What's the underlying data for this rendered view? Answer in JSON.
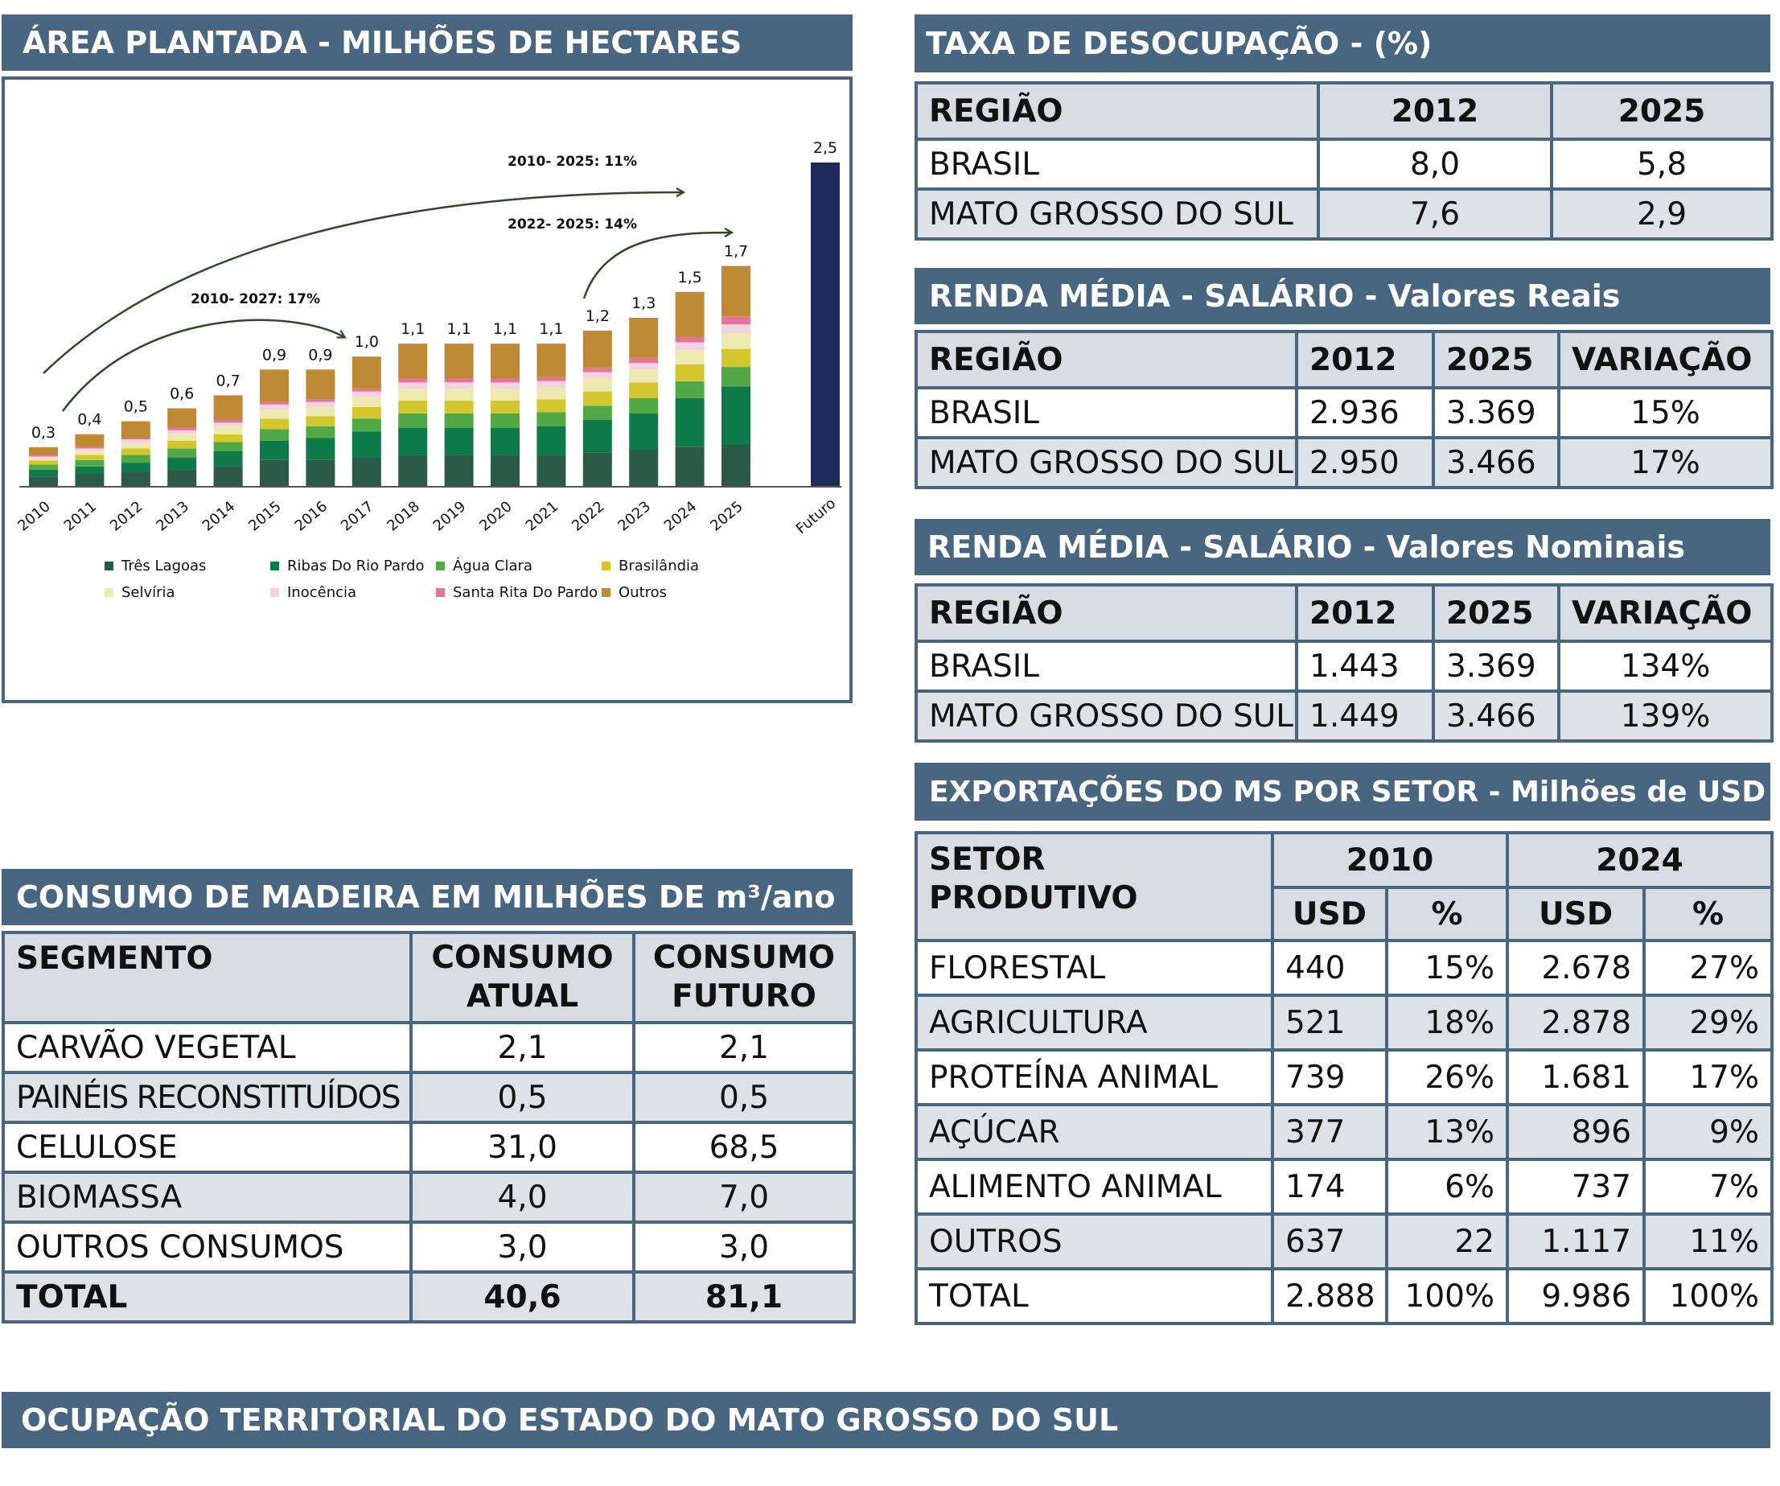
{
  "area_plantada": {
    "title": "ÁREA PLANTADA - MILHÕES DE HECTARES",
    "arrow_labels": [
      "2010- 2025: 11%",
      "2022- 2025: 14%",
      "2010- 2027: 17%"
    ]
  },
  "chart_data": {
    "type": "bar",
    "stacked": true,
    "categories": [
      "2010",
      "2011",
      "2012",
      "2013",
      "2014",
      "2015",
      "2016",
      "2017",
      "2018",
      "2019",
      "2020",
      "2021",
      "2022",
      "2023",
      "2024",
      "2025",
      "Futuro"
    ],
    "totals": [
      0.3,
      0.4,
      0.5,
      0.6,
      0.7,
      0.9,
      0.9,
      1.0,
      1.1,
      1.1,
      1.1,
      1.1,
      1.2,
      1.3,
      1.5,
      1.7,
      2.5
    ],
    "total_labels": [
      "0,3",
      "0,4",
      "0,5",
      "0,6",
      "0,7",
      "0,9",
      "0,9",
      "1,0",
      "1,1",
      "1,1",
      "1,1",
      "1,1",
      "1,2",
      "1,3",
      "1,5",
      "1,7",
      "2,5"
    ],
    "series": [
      {
        "name": "Três Lagoas",
        "color": "#2b5a48",
        "values": [
          0.07,
          0.09,
          0.11,
          0.13,
          0.15,
          0.2,
          0.2,
          0.22,
          0.24,
          0.24,
          0.24,
          0.24,
          0.26,
          0.28,
          0.3,
          0.32,
          null
        ]
      },
      {
        "name": "Ribas Do Rio Pardo",
        "color": "#0e7a4a",
        "values": [
          0.05,
          0.06,
          0.07,
          0.09,
          0.12,
          0.15,
          0.17,
          0.2,
          0.21,
          0.21,
          0.21,
          0.22,
          0.25,
          0.28,
          0.38,
          0.45,
          null
        ]
      },
      {
        "name": "Água Clara",
        "color": "#52a844",
        "values": [
          0.04,
          0.05,
          0.06,
          0.07,
          0.07,
          0.09,
          0.09,
          0.1,
          0.11,
          0.11,
          0.11,
          0.11,
          0.11,
          0.12,
          0.13,
          0.15,
          null
        ]
      },
      {
        "name": "Brasilândia",
        "color": "#d4c62f",
        "values": [
          0.03,
          0.04,
          0.05,
          0.06,
          0.06,
          0.08,
          0.08,
          0.09,
          0.1,
          0.1,
          0.1,
          0.1,
          0.11,
          0.12,
          0.13,
          0.14,
          null
        ]
      },
      {
        "name": "Selvíria",
        "color": "#ede9b0",
        "values": [
          0.02,
          0.03,
          0.04,
          0.05,
          0.06,
          0.07,
          0.07,
          0.08,
          0.09,
          0.09,
          0.09,
          0.09,
          0.1,
          0.1,
          0.11,
          0.12,
          null
        ]
      },
      {
        "name": "Inocência",
        "color": "#f4d3e1",
        "values": [
          0.01,
          0.02,
          0.03,
          0.03,
          0.03,
          0.04,
          0.04,
          0.04,
          0.05,
          0.05,
          0.05,
          0.05,
          0.05,
          0.05,
          0.06,
          0.07,
          null
        ]
      },
      {
        "name": "Santa Rita Do Pardo",
        "color": "#e8739a",
        "values": [
          0.01,
          0.01,
          0.01,
          0.02,
          0.02,
          0.02,
          0.02,
          0.02,
          0.03,
          0.03,
          0.03,
          0.03,
          0.03,
          0.04,
          0.04,
          0.06,
          null
        ]
      },
      {
        "name": "Outros",
        "color": "#bf8a35",
        "values": [
          0.06,
          0.1,
          0.13,
          0.15,
          0.19,
          0.25,
          0.23,
          0.25,
          0.27,
          0.27,
          0.27,
          0.26,
          0.29,
          0.31,
          0.35,
          0.39,
          null
        ]
      },
      {
        "color": "#1f2a5a",
        "values": [
          null,
          null,
          null,
          null,
          null,
          null,
          null,
          null,
          null,
          null,
          null,
          null,
          null,
          null,
          null,
          null,
          2.5
        ]
      }
    ],
    "ylim": [
      0,
      2.5
    ],
    "grid": false,
    "legend_position": "bottom"
  },
  "desocupacao": {
    "title": "TAXA DE DESOCUPAÇÃO - (%)",
    "headers": [
      "REGIÃO",
      "2012",
      "2025"
    ],
    "rows": [
      [
        "BRASIL",
        "8,0",
        "5,8"
      ],
      [
        "MATO GROSSO DO SUL",
        "7,6",
        "2,9"
      ]
    ]
  },
  "renda_reais": {
    "title": "RENDA MÉDIA - SALÁRIO - Valores Reais",
    "headers": [
      "REGIÃO",
      "2012",
      "2025",
      "VARIAÇÃO"
    ],
    "rows": [
      [
        "BRASIL",
        "2.936",
        "3.369",
        "15%"
      ],
      [
        "MATO GROSSO DO SUL",
        "2.950",
        "3.466",
        "17%"
      ]
    ]
  },
  "renda_nominais": {
    "title": "RENDA MÉDIA - SALÁRIO - Valores Nominais",
    "headers": [
      "REGIÃO",
      "2012",
      "2025",
      "VARIAÇÃO"
    ],
    "rows": [
      [
        "BRASIL",
        "1.443",
        "3.369",
        "134%"
      ],
      [
        "MATO GROSSO DO SUL",
        "1.449",
        "3.466",
        "139%"
      ]
    ]
  },
  "exportacoes": {
    "title": "EXPORTAÇÕES DO MS POR SETOR - Milhões de USD",
    "header_setor": "SETOR PRODUTIVO",
    "header_setor_line1": "SETOR",
    "header_setor_line2": "PRODUTIVO",
    "years": [
      "2010",
      "2024"
    ],
    "sub": [
      "USD",
      "%",
      "USD",
      "%"
    ],
    "rows": [
      [
        "FLORESTAL",
        "440",
        "15%",
        "2.678",
        "27%"
      ],
      [
        "AGRICULTURA",
        "521",
        "18%",
        "2.878",
        "29%"
      ],
      [
        "PROTEÍNA ANIMAL",
        "739",
        "26%",
        "1.681",
        "17%"
      ],
      [
        "AÇÚCAR",
        "377",
        "13%",
        "896",
        "9%"
      ],
      [
        "ALIMENTO ANIMAL",
        "174",
        "6%",
        "737",
        "7%"
      ],
      [
        "OUTROS",
        "637",
        "22",
        "1.117",
        "11%"
      ],
      [
        "TOTAL",
        "2.888",
        "100%",
        "9.986",
        "100%"
      ]
    ]
  },
  "consumo": {
    "title": "CONSUMO DE MADEIRA EM MILHÕES DE m³/ano",
    "headers": [
      "SEGMENTO",
      "CONSUMO ATUAL",
      "CONSUMO FUTURO"
    ],
    "headers_line1": [
      "SEGMENTO",
      "CONSUMO",
      "CONSUMO"
    ],
    "headers_line2": [
      "",
      "ATUAL",
      "FUTURO"
    ],
    "rows": [
      [
        "CARVÃO VEGETAL",
        "2,1",
        "2,1"
      ],
      [
        "PAINÉIS RECONSTITUÍDOS",
        "0,5",
        "0,5"
      ],
      [
        "CELULOSE",
        "31,0",
        "68,5"
      ],
      [
        "BIOMASSA",
        "4,0",
        "7,0"
      ],
      [
        "OUTROS CONSUMOS",
        "3,0",
        "3,0"
      ],
      [
        "TOTAL",
        "40,6",
        "81,1"
      ]
    ]
  },
  "ocupacao": {
    "title": "OCUPAÇÃO TERRITORIAL DO ESTADO DO MATO GROSSO DO SUL"
  }
}
